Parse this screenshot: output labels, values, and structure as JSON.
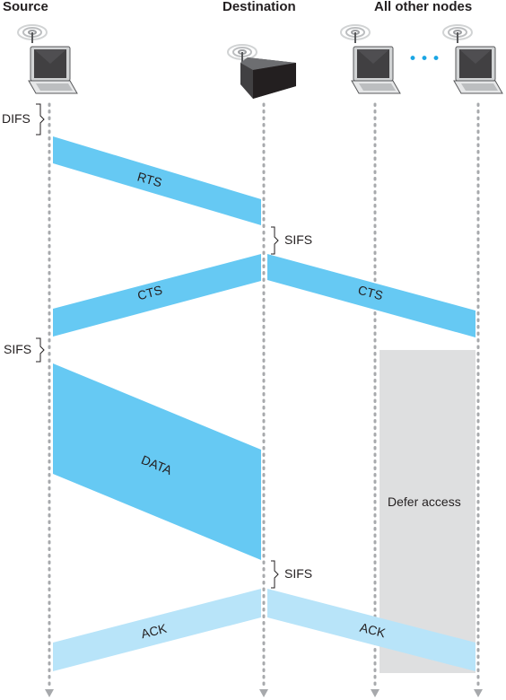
{
  "headers": {
    "source": "Source",
    "destination": "Destination",
    "others": "All other nodes"
  },
  "intervals": {
    "difs": "DIFS",
    "sifs_1": "SIFS",
    "sifs_2": "SIFS",
    "sifs_3": "SIFS"
  },
  "frames": {
    "rts": "RTS",
    "cts_to_source": "CTS",
    "cts_to_others": "CTS",
    "data": "DATA",
    "ack_to_source": "ACK",
    "ack_to_others": "ACK"
  },
  "defer": {
    "label": "Defer access"
  },
  "ellipsis": "•••",
  "colors": {
    "frame": "#66c9f3",
    "ack": "#b8e4f9",
    "defer": "#dedfe0",
    "timeline": "#a7a9ac",
    "text": "#231f20",
    "dots": "#1ba6e4"
  }
}
